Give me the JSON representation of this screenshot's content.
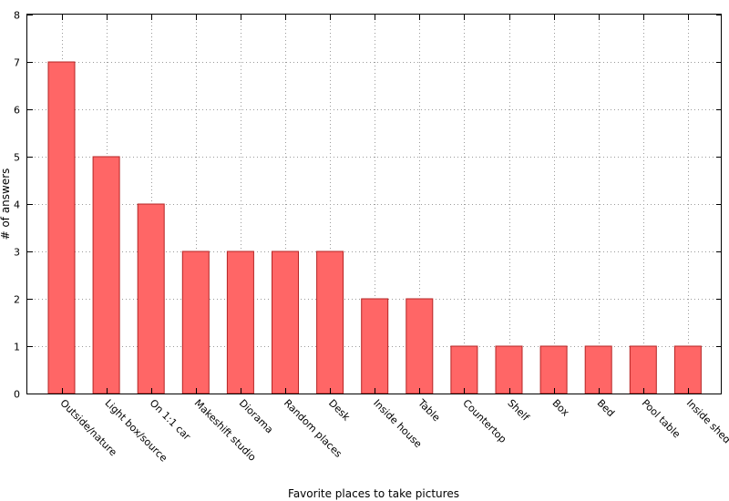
{
  "chart_data": {
    "type": "bar",
    "categories": [
      "Outside/nature",
      "Light box/source",
      "On 1:1 car",
      "Makeshift studio",
      "Diorama",
      "Random places",
      "Desk",
      "Inside house",
      "Table",
      "Countertop",
      "Shelf",
      "Box",
      "Bed",
      "Pool table",
      "Inside shed"
    ],
    "values": [
      7,
      5,
      4,
      3,
      3,
      3,
      3,
      2,
      2,
      1,
      1,
      1,
      1,
      1,
      1
    ],
    "title": "",
    "xlabel": "Favorite places to take pictures",
    "ylabel": "# of answers",
    "ylim": [
      0,
      8
    ],
    "yticks": [
      0,
      1,
      2,
      3,
      4,
      5,
      6,
      7,
      8
    ],
    "grid": true,
    "legend": "none",
    "bar_color": "#ff6666",
    "bar_edge_color": "#b52424"
  }
}
